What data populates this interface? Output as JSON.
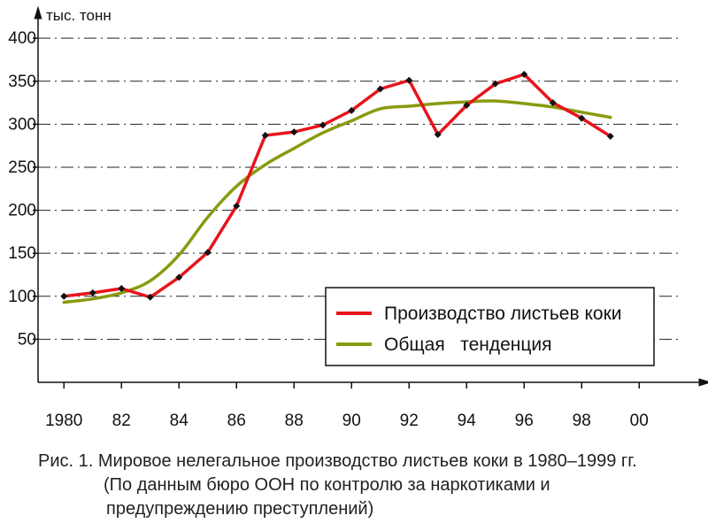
{
  "chart_data": {
    "type": "line",
    "title": "",
    "ylabel": "тыс. тонн",
    "xlabel": "",
    "x": [
      1980,
      1981,
      1982,
      1983,
      1984,
      1985,
      1986,
      1987,
      1988,
      1989,
      1990,
      1991,
      1992,
      1993,
      1994,
      1995,
      1996,
      1997,
      1998,
      1999
    ],
    "xlim": [
      1979.1,
      2002.3
    ],
    "ylim": [
      0,
      430
    ],
    "yticks": [
      50,
      100,
      150,
      200,
      250,
      300,
      350,
      400
    ],
    "xticks": [
      1980,
      1982,
      1984,
      1986,
      1988,
      1990,
      1992,
      1994,
      1996,
      1998,
      2000
    ],
    "xtick_labels": [
      "1980",
      "82",
      "84",
      "86",
      "88",
      "90",
      "92",
      "94",
      "96",
      "98",
      "00"
    ],
    "grid": "horizontal dash-dot",
    "legend_position": "bottom-right",
    "series": [
      {
        "name": "Производство листьев коки",
        "color": "#e8141c",
        "markers": true,
        "values": [
          100,
          104,
          109,
          99,
          122,
          151,
          205,
          287,
          291,
          299,
          316,
          341,
          351,
          288,
          322,
          347,
          358,
          325,
          307,
          286
        ]
      },
      {
        "name": "Общая   тенденция",
        "color": "#8a9a10",
        "markers": false,
        "x": [
          1980,
          1981,
          1982,
          1983,
          1984,
          1985,
          1986,
          1987,
          1988,
          1989,
          1990,
          1991,
          1992,
          1993,
          1994,
          1995,
          1996,
          1997,
          1998,
          1999
        ],
        "values": [
          93,
          97,
          104,
          118,
          148,
          192,
          228,
          253,
          272,
          290,
          304,
          318,
          321,
          324,
          326,
          327,
          324,
          320,
          314,
          308
        ]
      }
    ]
  },
  "caption": {
    "line1": "Рис. 1. Мировое нелегальное производство листьев коки в 1980–1999 гг.",
    "line2": "(По данным бюро ООН по контролю за наркотиками и",
    "line3": "предупреждению преступлений)"
  }
}
